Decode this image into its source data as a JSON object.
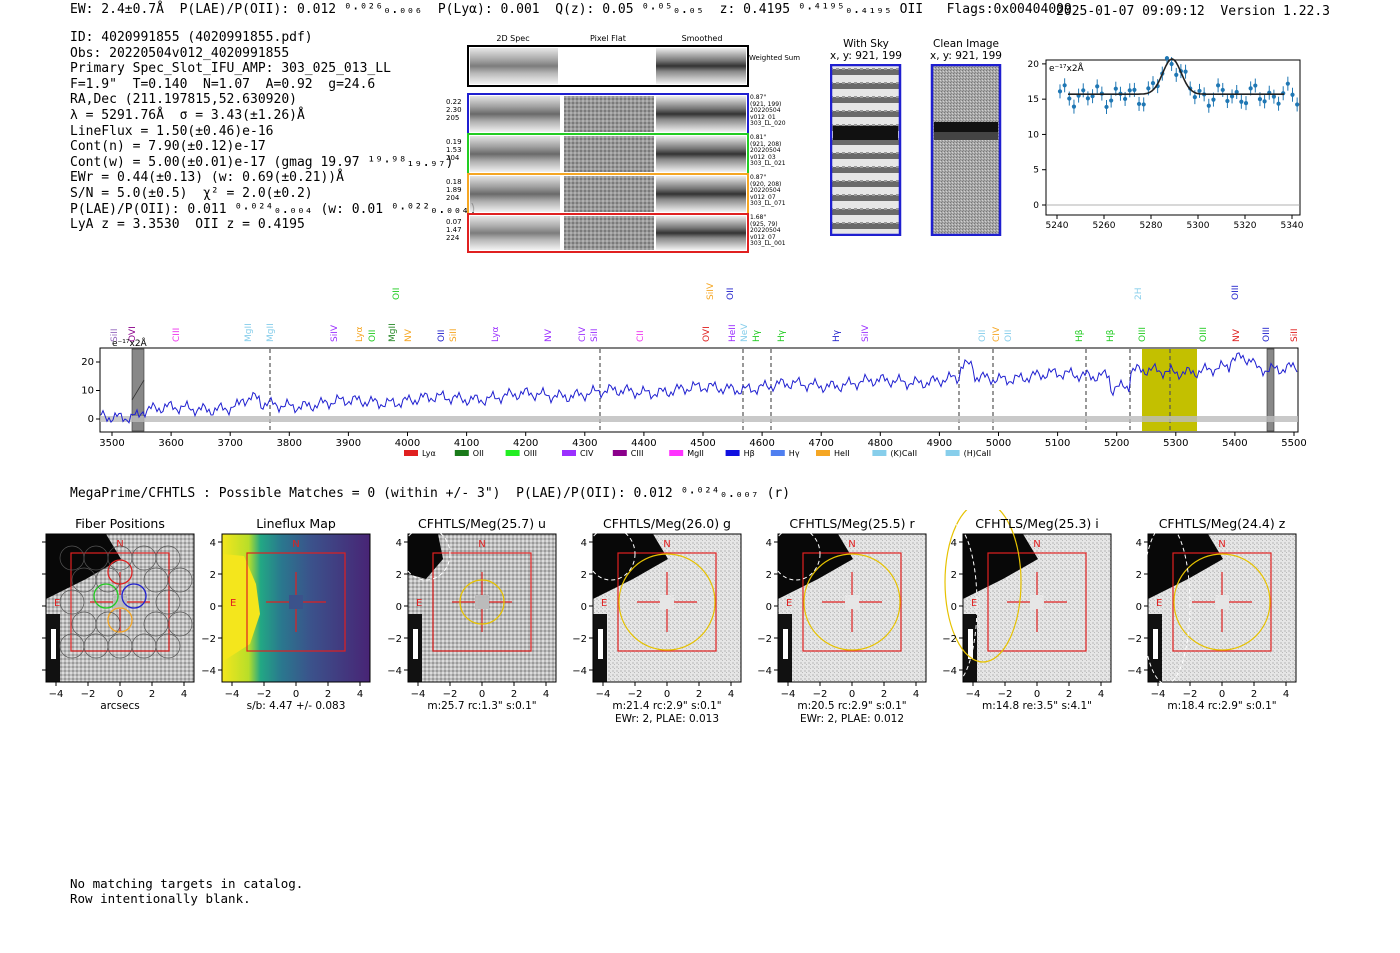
{
  "header": {
    "left": "EW: 2.4±0.7Å  P(LAE)/P(OII): 0.012 ⁰·⁰²⁶₀.₀₀₆  P(Lyα): 0.001  Q(z): 0.05 ⁰·⁰⁵₀.₀₅  z: 0.4195 ⁰·⁴¹⁹⁵₀.₄₁₉₅ OII   Flags:0x00404009",
    "datetime": "2025-01-07 09:09:12",
    "version": "Version 1.22.3"
  },
  "info_lines": [
    "ID: 4020991855 (4020991855.pdf)",
    "Obs: 20220504v012_4020991855",
    "Primary Spec_Slot_IFU_AMP: 303_025_013_LL",
    "F=1.9\"  T=0.140  N=1.07  A=0.92  g=24.6",
    "RA,Dec (211.197815,52.630920)",
    "λ = 5291.76Å  σ = 3.43(±1.26)Å",
    "LineFlux = 1.50(±0.46)e-16",
    "Cont(n) = 7.90(±0.12)e-17",
    "Cont(w) = 5.00(±0.01)e-17 (gmag 19.97 ¹⁹·⁹⁸₁₉.₉₇)",
    "EWr = 0.44(±0.13) (w: 0.69(±0.21))Å",
    "S/N = 5.0(±0.5)  χ² = 2.0(±0.2)",
    "P(LAE)/P(OII): 0.011 ⁰·⁰²⁴₀.₀₀₄ (w: 0.01 ⁰·⁰²²₀.₀₀₄)",
    "LyA z = 3.3530  OII z = 0.4195"
  ],
  "cutouts": {
    "col_headers": [
      "2D Spec",
      "Pixel Flat",
      "Smoothed"
    ],
    "weighted_sum_label": "Weighted Sum",
    "rows": [
      {
        "left": [
          "0.22",
          "2.30",
          "205"
        ],
        "right": [
          "0.87\"",
          "(921, 199)",
          "20220504",
          "v012_01",
          "303_LL_020"
        ],
        "color": "#1f1fd0"
      },
      {
        "left": [
          "0.19",
          "1.53",
          "204"
        ],
        "right": [
          "0.81\"",
          "(921, 208)",
          "20220504",
          "v012_03",
          "303_LL_021"
        ],
        "color": "#22cc22"
      },
      {
        "left": [
          "0.18",
          "1.89",
          "204"
        ],
        "right": [
          "0.87\"",
          "(920, 208)",
          "20220504",
          "v012_07",
          "303_LL_071"
        ],
        "color": "#f5a623"
      },
      {
        "left": [
          "0.07",
          "1.47",
          "224"
        ],
        "right": [
          "1.68\"",
          "(925, 79)",
          "20220504",
          "v012_07",
          "303_LL_001"
        ],
        "color": "#e02020"
      }
    ]
  },
  "sky_images": {
    "with_sky": {
      "title": "With Sky",
      "coords": "x, y: 921, 199"
    },
    "clean": {
      "title": "Clean Image",
      "coords": "x, y: 921, 199"
    }
  },
  "zoom_chart": {
    "unit_label": "e⁻¹⁷x2Å",
    "xticks": [
      "5240",
      "5260",
      "5280",
      "5300",
      "5320",
      "5340"
    ],
    "yticks": [
      "0",
      "5",
      "10",
      "15",
      "20"
    ]
  },
  "full_spectrum": {
    "unit_label": "e⁻¹⁷x2Å",
    "xticks": [
      "3500",
      "3600",
      "3700",
      "3800",
      "3900",
      "4000",
      "4100",
      "4200",
      "4300",
      "4400",
      "4500",
      "4600",
      "4700",
      "4800",
      "4900",
      "5000",
      "5100",
      "5200",
      "5300",
      "5400",
      "5500"
    ],
    "yticks": [
      "0",
      "10",
      "20"
    ],
    "line_labels": [
      {
        "t": "SiII",
        "c": "#9467bd"
      },
      {
        "t": "OVI",
        "c": "#8B008B"
      },
      {
        "t": "CIII",
        "c": "#ee33ee"
      },
      {
        "t": "MgII",
        "c": "#87ceeb"
      },
      {
        "t": "MgII",
        "c": "#87ceeb"
      },
      {
        "t": "SiIV",
        "c": "#9b30ff"
      },
      {
        "t": "Lyα",
        "c": "#f5a623"
      },
      {
        "t": "OII",
        "c": "#22cc22"
      },
      {
        "t": "MgII",
        "c": "#2a8a2a"
      },
      {
        "t": "NV",
        "c": "#f5a623"
      },
      {
        "t": "OII",
        "c": "#2222cc"
      },
      {
        "t": "SiII",
        "c": "#f5a623"
      },
      {
        "t": "Lyα",
        "c": "#9b30ff"
      },
      {
        "t": "NV",
        "c": "#9b30ff"
      },
      {
        "t": "CIV",
        "c": "#9b30ff"
      },
      {
        "t": "SiII",
        "c": "#9b30ff"
      },
      {
        "t": "CII",
        "c": "#ee33ee"
      },
      {
        "t": "OVI",
        "c": "#e02020"
      },
      {
        "t": "HeII",
        "c": "#9b30ff"
      },
      {
        "t": "NeV",
        "c": "#87ceeb"
      },
      {
        "t": "Hγ",
        "c": "#22cc22"
      },
      {
        "t": "Hγ",
        "c": "#22cc22"
      },
      {
        "t": "Hγ",
        "c": "#2222cc"
      },
      {
        "t": "SiIV",
        "c": "#9b30ff"
      },
      {
        "t": "OII",
        "c": "#87ceeb"
      },
      {
        "t": "CIV",
        "c": "#f5a623"
      },
      {
        "t": "OII",
        "c": "#87ceeb"
      },
      {
        "t": "Hβ",
        "c": "#22cc22"
      },
      {
        "t": "Hβ",
        "c": "#22cc22"
      },
      {
        "t": "OIII",
        "c": "#22cc22"
      },
      {
        "t": "OIII",
        "c": "#22cc22"
      },
      {
        "t": "NV",
        "c": "#e02020"
      },
      {
        "t": "OIII",
        "c": "#2222cc"
      },
      {
        "t": "SiII",
        "c": "#e02020"
      }
    ],
    "upper_labels": [
      {
        "t": "OII",
        "c": "#22cc22"
      },
      {
        "t": "SiIV",
        "c": "#f5a623"
      },
      {
        "t": "OII",
        "c": "#2222cc"
      },
      {
        "t": "2H",
        "c": "#87ceeb"
      },
      {
        "t": "OIII",
        "c": "#2222cc"
      }
    ],
    "legend": [
      {
        "t": "Lyα",
        "c": "#e02020"
      },
      {
        "t": "OII",
        "c": "#1a7a1a"
      },
      {
        "t": "OIII",
        "c": "#22ee22"
      },
      {
        "t": "CIV",
        "c": "#9b30ff"
      },
      {
        "t": "CIII",
        "c": "#8B008B"
      },
      {
        "t": "MgII",
        "c": "#ff33ff"
      },
      {
        "t": "Hβ",
        "c": "#1010e0"
      },
      {
        "t": "Hγ",
        "c": "#4f7ff0"
      },
      {
        "t": "HeII",
        "c": "#f5a623"
      },
      {
        "t": "(K)CaII",
        "c": "#87ceeb"
      },
      {
        "t": "(H)CaII",
        "c": "#87ceeb"
      }
    ]
  },
  "match_line": "MegaPrime/CFHTLS : Possible Matches = 0 (within +/- 3\")  P(LAE)/P(OII): 0.012 ⁰·⁰²⁴₀.₀₀₇ (r)",
  "panels": [
    {
      "title": "Fiber Positions",
      "cap1": "arcsecs",
      "cap2": ""
    },
    {
      "title": "Lineflux Map",
      "cap1": "s/b: 4.47 +/- 0.083",
      "cap2": ""
    },
    {
      "title": "CFHTLS/Meg(25.7) u",
      "cap1": "m:25.7 rc:1.3\"  s:0.1\"",
      "cap2": ""
    },
    {
      "title": "CFHTLS/Meg(26.0) g",
      "cap1": "m:21.4 rc:2.9\"  s:0.1\"",
      "cap2": "EWr: 2, PLAE: 0.013"
    },
    {
      "title": "CFHTLS/Meg(25.5) r",
      "cap1": "m:20.5 rc:2.9\"  s:0.1\"",
      "cap2": "EWr: 2, PLAE: 0.012"
    },
    {
      "title": "CFHTLS/Meg(25.3) i",
      "cap1": "m:14.8  re:3.5\"  s:4.1\"",
      "cap2": ""
    },
    {
      "title": "CFHTLS/Meg(24.4) z",
      "cap1": "m:18.4 rc:2.9\"  s:0.1\"",
      "cap2": ""
    }
  ],
  "panel_axis": {
    "xticks": [
      "−4",
      "−2",
      "0",
      "2",
      "4"
    ],
    "yticks": [
      "4",
      "2",
      "0",
      "−2",
      "−4"
    ],
    "north": "N",
    "east": "E"
  },
  "footer": [
    "No matching targets in catalog.",
    "Row intentionally blank."
  ]
}
